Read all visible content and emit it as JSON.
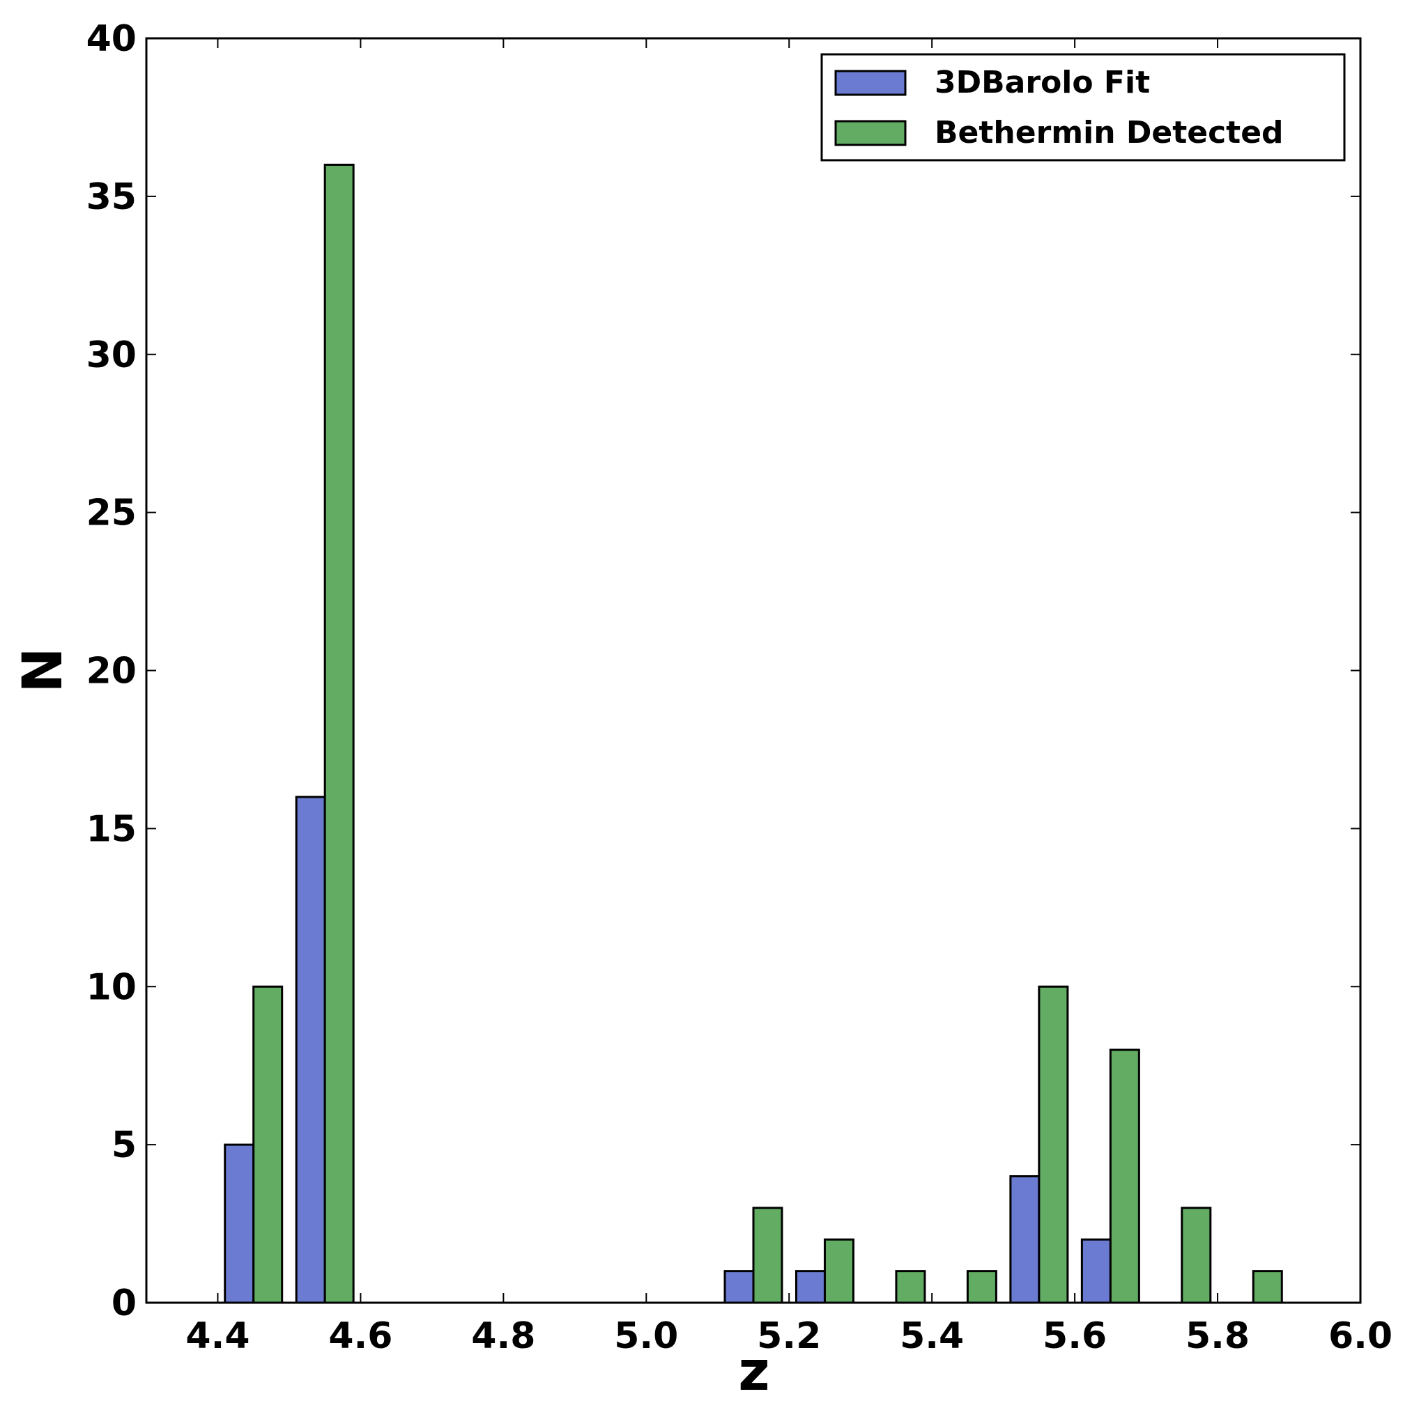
{
  "chart_data": {
    "type": "histogram",
    "xlabel": "z",
    "ylabel": "N",
    "bins": [
      4.4,
      4.5,
      4.6,
      4.7,
      4.8,
      4.9,
      5.0,
      5.1,
      5.2,
      5.3,
      5.4,
      5.5,
      5.6,
      5.7,
      5.8,
      5.9
    ],
    "series": [
      {
        "name": "3DBarolo Fit",
        "color": "#6a7bd1",
        "values": [
          5,
          16,
          0,
          0,
          0,
          0,
          0,
          1,
          1,
          0,
          0,
          4,
          2,
          0,
          0
        ]
      },
      {
        "name": "Bethermin Detected",
        "color": "#62ad63",
        "values": [
          10,
          36,
          0,
          0,
          0,
          0,
          0,
          3,
          2,
          1,
          1,
          10,
          8,
          3,
          1
        ]
      }
    ],
    "xlim": [
      4.3,
      6.0
    ],
    "xticks": [
      4.4,
      4.6,
      4.8,
      {
        "value": 5,
        "label": "5.0"
      },
      5.2,
      5.4,
      5.6,
      5.8,
      {
        "value": 6,
        "label": "6.0"
      }
    ],
    "ylim": [
      0,
      40
    ],
    "yticks": [
      0,
      5,
      10,
      15,
      20,
      25,
      30,
      35,
      40
    ],
    "legend": "upper right"
  }
}
